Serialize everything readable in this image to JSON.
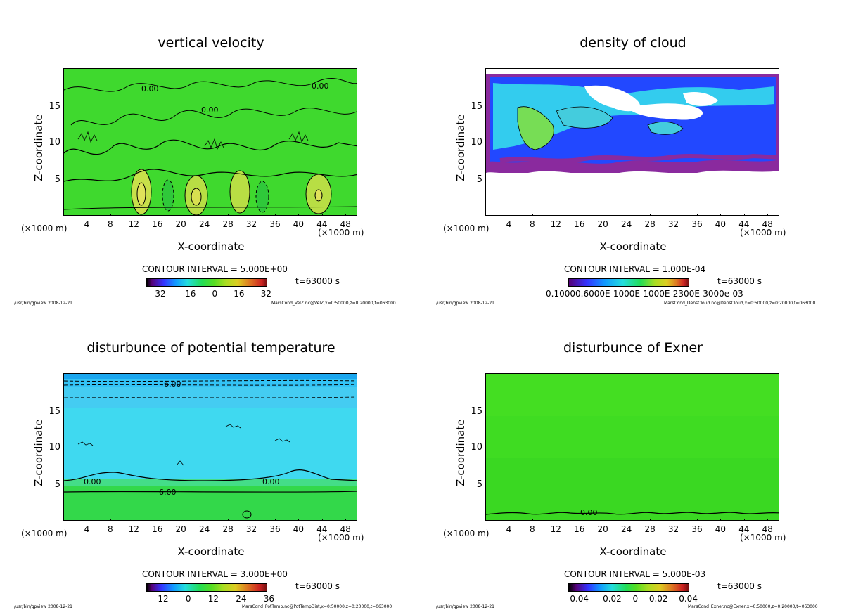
{
  "chart_data": [
    {
      "type": "heatmap",
      "title": "vertical velocity",
      "xlabel": "X-coordinate",
      "ylabel": "Z-coordinate",
      "x_unit_left": "(×1000 m)",
      "x_unit_right": "(×1000 m)",
      "xticks": [
        "4",
        "8",
        "12",
        "16",
        "20",
        "24",
        "28",
        "32",
        "36",
        "40",
        "44",
        "48"
      ],
      "yticks": [
        "5",
        "10",
        "15"
      ],
      "xlim": [
        0,
        50
      ],
      "ylim": [
        0,
        20
      ],
      "contour_interval": "CONTOUR INTERVAL = 5.000E+00",
      "time": "t=63000 s",
      "colorbar_ticks": [
        "-32",
        "-16",
        "0",
        "16",
        "32"
      ],
      "contour_labels": [
        "0.00",
        "0.00",
        "0.00"
      ],
      "footer_left": "/usr/bin/gpview  2008-12-21",
      "footer_right": "MarsCond_VelZ.nc@VelZ,x=0:50000,z=0:20000,t=063000"
    },
    {
      "type": "heatmap",
      "title": "density of cloud",
      "xlabel": "X-coordinate",
      "ylabel": "Z-coordinate",
      "x_unit_left": "(×1000 m)",
      "x_unit_right": "(×1000 m)",
      "xticks": [
        "4",
        "8",
        "12",
        "16",
        "20",
        "24",
        "28",
        "32",
        "36",
        "40",
        "44",
        "48"
      ],
      "yticks": [
        "5",
        "10",
        "15"
      ],
      "xlim": [
        0,
        50
      ],
      "ylim": [
        0,
        20
      ],
      "contour_interval": "CONTOUR INTERVAL = 1.000E-04",
      "time": "t=63000 s",
      "colorbar_ticks_text": "0.10000.6000E-1000E-1000E-2300E-3000e-03",
      "footer_left": "/usr/bin/gpview  2008-12-21",
      "footer_right": "MarsCond_DensCloud.nc@DensCloud,x=0:50000,z=0:20000,t=063000"
    },
    {
      "type": "heatmap",
      "title": "disturbunce of potential temperature",
      "xlabel": "X-coordinate",
      "ylabel": "Z-coordinate",
      "x_unit_left": "(×1000 m)",
      "x_unit_right": "(×1000 m)",
      "xticks": [
        "4",
        "8",
        "12",
        "16",
        "20",
        "24",
        "28",
        "32",
        "36",
        "40",
        "44",
        "48"
      ],
      "yticks": [
        "5",
        "10",
        "15"
      ],
      "xlim": [
        0,
        50
      ],
      "ylim": [
        0,
        20
      ],
      "contour_interval": "CONTOUR INTERVAL = 3.000E+00",
      "time": "t=63000 s",
      "colorbar_ticks": [
        "-12",
        "0",
        "12",
        "24",
        "36"
      ],
      "contour_labels": [
        "6.00",
        "0.00",
        "0.00",
        "6.00"
      ],
      "footer_left": "/usr/bin/gpview  2008-12-21",
      "footer_right": "MarsCond_PotTemp.nc@PotTempDist,x=0:50000,z=0:20000,t=063000"
    },
    {
      "type": "heatmap",
      "title": "disturbunce of Exner",
      "xlabel": "X-coordinate",
      "ylabel": "Z-coordinate",
      "x_unit_left": "(×1000 m)",
      "x_unit_right": "(×1000 m)",
      "xticks": [
        "4",
        "8",
        "12",
        "16",
        "20",
        "24",
        "28",
        "32",
        "36",
        "40",
        "44",
        "48"
      ],
      "yticks": [
        "5",
        "10",
        "15"
      ],
      "xlim": [
        0,
        50
      ],
      "ylim": [
        0,
        20
      ],
      "contour_interval": "CONTOUR INTERVAL = 5.000E-03",
      "time": "t=63000 s",
      "colorbar_ticks": [
        "-0.04",
        "-0.02",
        "0",
        "0.02",
        "0.04"
      ],
      "contour_labels": [
        "0.00"
      ],
      "footer_left": "/usr/bin/gpview  2008-12-21",
      "footer_right": "MarsCond_Exner.nc@Exner,x=0:50000,z=0:20000,t=063000"
    }
  ],
  "colors": {
    "green": "#33dd22",
    "cyan": "#22ddff",
    "blue": "#2255ff",
    "purple": "#882299",
    "white": "#ffffff"
  }
}
